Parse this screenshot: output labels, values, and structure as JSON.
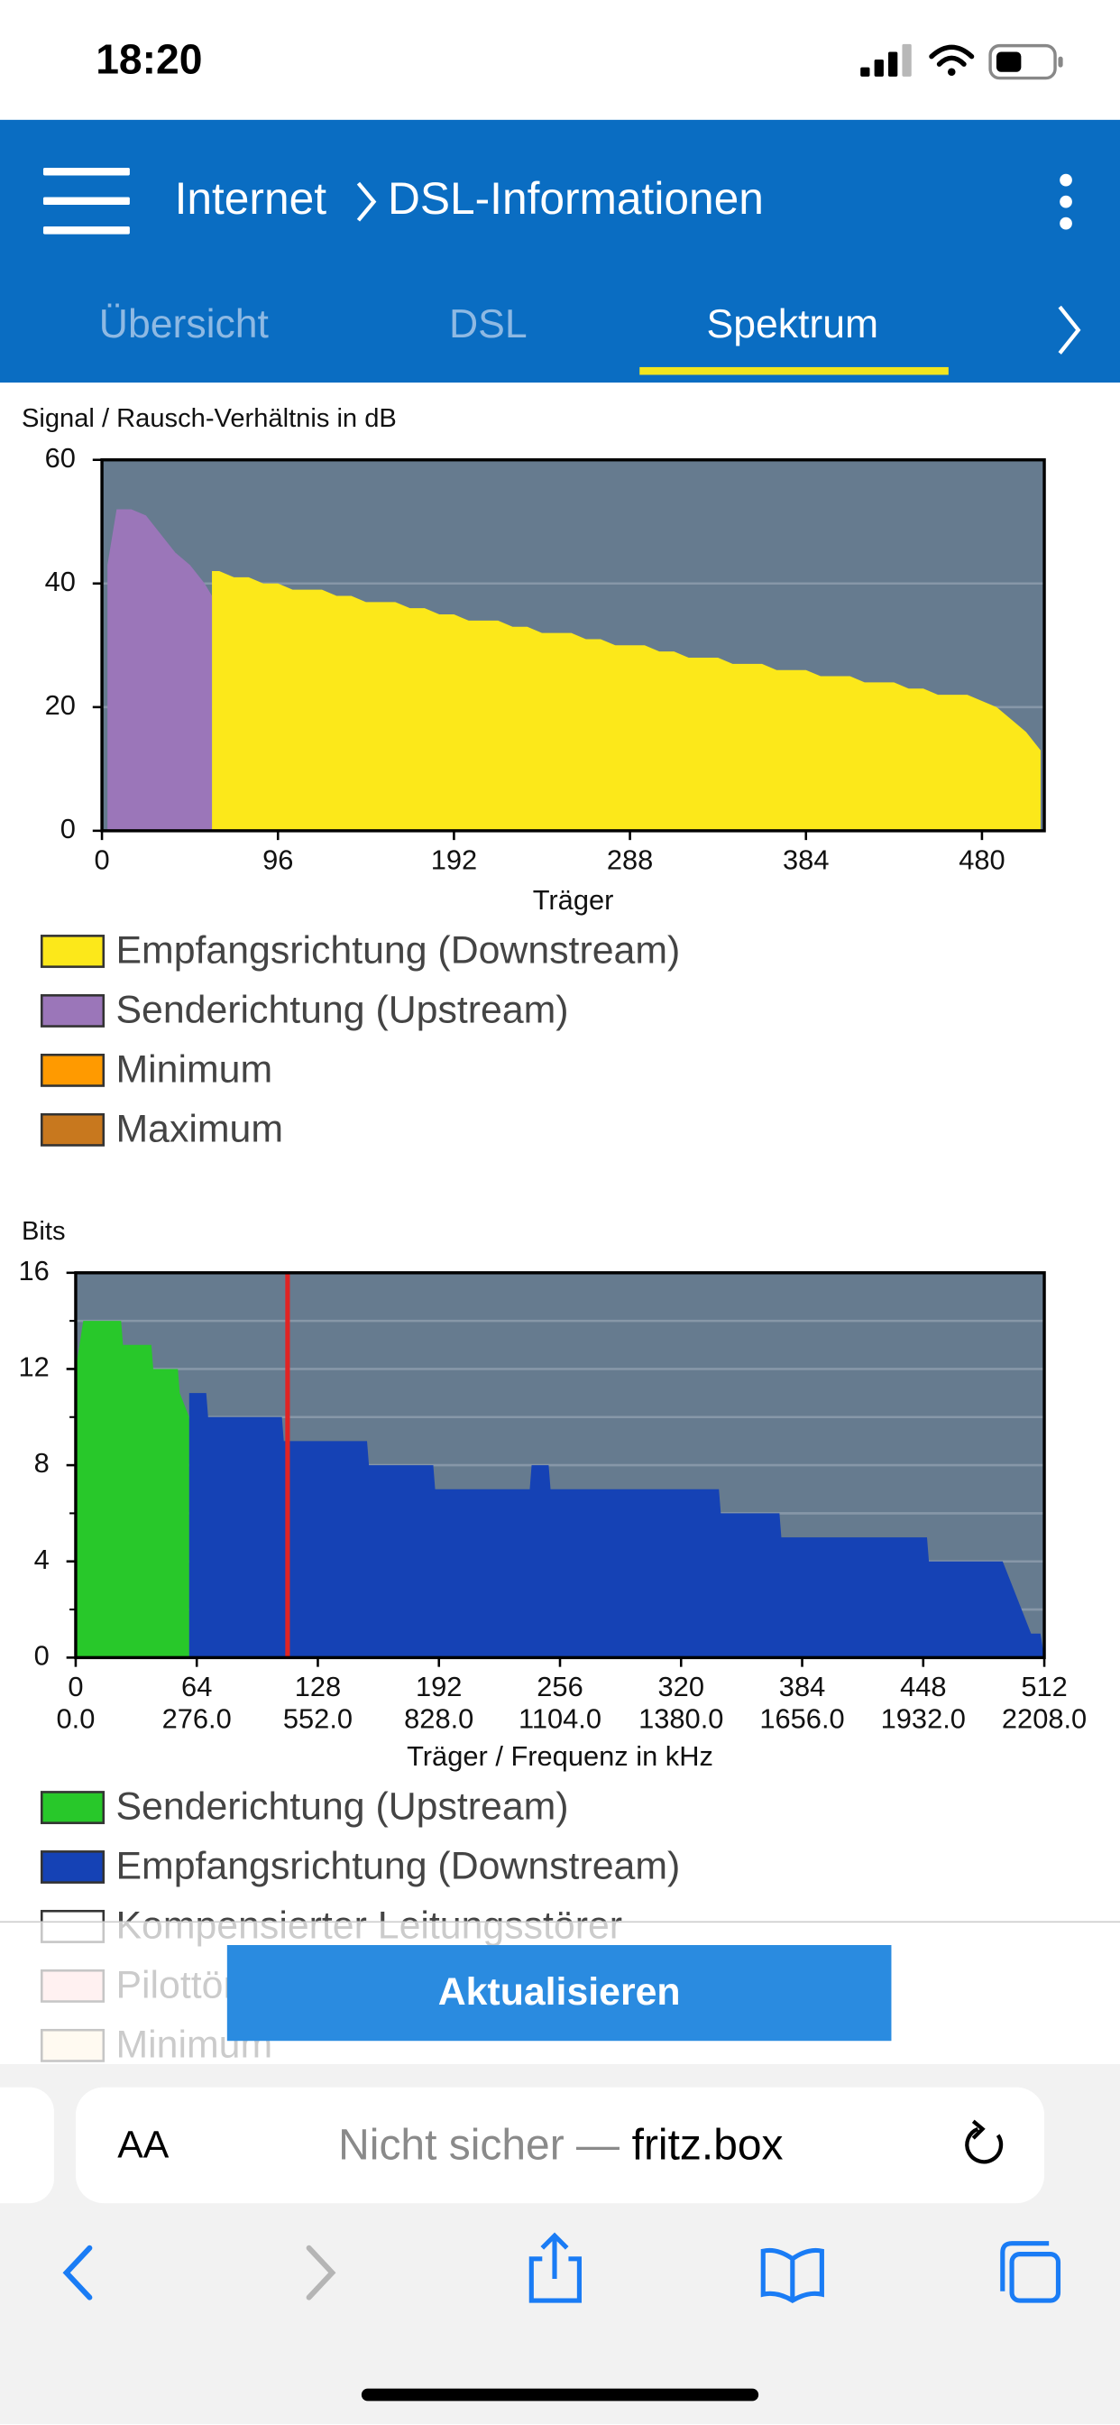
{
  "status_bar": {
    "time": "18:20"
  },
  "header": {
    "section": "Internet",
    "page": "DSL-Informationen"
  },
  "tabs": [
    "Übersicht",
    "DSL",
    "Spektrum"
  ],
  "chart_data": [
    {
      "type": "area",
      "y_label": "Signal / Rausch-Verhältnis in dB",
      "x_label": "Träger",
      "xlim": [
        0,
        514
      ],
      "xticks": [
        0,
        96,
        192,
        288,
        384,
        480
      ],
      "ylim": [
        0,
        60
      ],
      "yticks": [
        0,
        20,
        40,
        60
      ],
      "grid": true,
      "background": "#667b8f",
      "series": [
        {
          "name": "Empfangsrichtung (Downstream)",
          "color": "#fce81a",
          "x": [
            60,
            64,
            72,
            80,
            88,
            96,
            104,
            112,
            120,
            128,
            136,
            144,
            152,
            160,
            168,
            176,
            184,
            192,
            200,
            208,
            216,
            224,
            232,
            240,
            248,
            256,
            264,
            272,
            280,
            288,
            296,
            304,
            312,
            320,
            328,
            336,
            344,
            352,
            360,
            368,
            376,
            384,
            392,
            400,
            408,
            416,
            424,
            432,
            440,
            448,
            456,
            464,
            472,
            480,
            488,
            496,
            504,
            512
          ],
          "values": [
            42,
            42,
            41,
            41,
            40,
            40,
            39,
            39,
            39,
            38,
            38,
            37,
            37,
            37,
            36,
            36,
            35,
            35,
            34,
            34,
            34,
            33,
            33,
            32,
            32,
            32,
            31,
            31,
            30,
            30,
            30,
            29,
            29,
            28,
            28,
            28,
            27,
            27,
            27,
            26,
            26,
            26,
            25,
            25,
            25,
            24,
            24,
            24,
            23,
            23,
            22,
            22,
            22,
            21,
            20,
            18,
            16,
            13
          ]
        },
        {
          "name": "Senderichtung (Upstream)",
          "color": "#9b76b9",
          "x": [
            3,
            8,
            16,
            24,
            32,
            40,
            48,
            56,
            60
          ],
          "values": [
            43,
            52,
            52,
            51,
            48,
            45,
            43,
            40,
            38
          ]
        },
        {
          "name": "Minimum",
          "color": "#ff9a00"
        },
        {
          "name": "Maximum",
          "color": "#c8781e"
        }
      ]
    },
    {
      "type": "area",
      "y_label": "Bits",
      "x_label": "Träger / Frequenz in kHz",
      "xlim": [
        0,
        512
      ],
      "xticks": [
        0,
        64,
        128,
        192,
        256,
        320,
        384,
        448,
        512
      ],
      "x2lim": [
        0,
        2208
      ],
      "x2ticks": [
        {
          "value": 0,
          "label": "0.0"
        },
        {
          "value": 276,
          "label": "276.0"
        },
        {
          "value": 552,
          "label": "552.0"
        },
        {
          "value": 828,
          "label": "828.0"
        },
        {
          "value": 1104,
          "label": "1104.0"
        },
        {
          "value": 1380,
          "label": "1380.0"
        },
        {
          "value": 1656,
          "label": "1656.0"
        },
        {
          "value": 1932,
          "label": "1932.0"
        },
        {
          "value": 2208,
          "label": "2208.0"
        }
      ],
      "ylim": [
        0,
        16
      ],
      "yticks": [
        0,
        4,
        8,
        12,
        16
      ],
      "minor_yticks": [
        2,
        6,
        10,
        14
      ],
      "grid": true,
      "background": "#667b8f",
      "marker_line": {
        "x": 112,
        "color": "#e02424"
      },
      "series": [
        {
          "name": "Senderichtung (Upstream)",
          "color": "#28c82a",
          "x": [
            0,
            4,
            8,
            24,
            25,
            40,
            41,
            54,
            55,
            60
          ],
          "values": [
            12,
            14,
            14,
            14,
            13,
            13,
            12,
            12,
            11,
            10
          ]
        },
        {
          "name": "Empfangsrichtung (Downstream)",
          "color": "#1542b5",
          "x": [
            60,
            69,
            70,
            109,
            110,
            154,
            155,
            189,
            190,
            240,
            241,
            250,
            251,
            340,
            341,
            372,
            373,
            450,
            451,
            490,
            495,
            500,
            505,
            510,
            512
          ],
          "values": [
            11,
            11,
            10,
            10,
            9,
            9,
            8,
            8,
            7,
            7,
            8,
            8,
            7,
            7,
            6,
            6,
            5,
            5,
            4,
            4,
            3,
            2,
            1,
            1,
            0
          ]
        },
        {
          "name": "Kompensierter Leitungsstörer",
          "color": "#ffffff"
        },
        {
          "name": "Pilottöne",
          "color": "#ffcccc"
        },
        {
          "name": "Minimum",
          "color": "#ffeccc"
        }
      ]
    }
  ],
  "button": "Aktualisieren",
  "url_bar": {
    "text_size": "AA",
    "security": "Nicht sicher —",
    "host": "fritz.box"
  }
}
